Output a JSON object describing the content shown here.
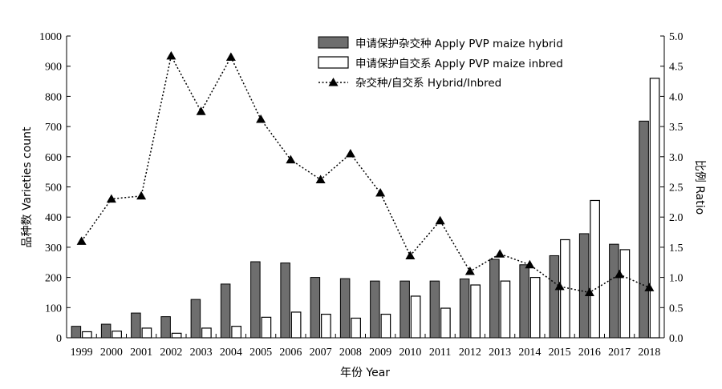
{
  "chart_data": {
    "type": "bar",
    "categories": [
      "1999",
      "2000",
      "2001",
      "2002",
      "2003",
      "2004",
      "2005",
      "2006",
      "2007",
      "2008",
      "2009",
      "2010",
      "2011",
      "2012",
      "2013",
      "2014",
      "2015",
      "2016",
      "2017",
      "2018"
    ],
    "series": [
      {
        "name": "申请保护杂交种 Apply PVP maize hybrid",
        "type": "bar",
        "axis": "left",
        "color": "#6e6e6e",
        "values": [
          38,
          45,
          82,
          70,
          127,
          178,
          252,
          248,
          200,
          196,
          188,
          188,
          188,
          195,
          260,
          242,
          272,
          345,
          310,
          718
        ]
      },
      {
        "name": "申请保护自交系 Apply PVP maize inbred",
        "type": "bar",
        "axis": "left",
        "color": "#ffffff",
        "values": [
          20,
          22,
          32,
          15,
          32,
          38,
          68,
          85,
          78,
          65,
          78,
          138,
          98,
          175,
          188,
          200,
          325,
          455,
          292,
          860
        ]
      },
      {
        "name": "杂交种/自交系 Hybrid/Inbred",
        "type": "line",
        "axis": "right",
        "color": "#000000",
        "values": [
          1.6,
          2.3,
          2.35,
          4.67,
          3.75,
          4.65,
          3.62,
          2.95,
          2.62,
          3.05,
          2.4,
          1.36,
          1.94,
          1.1,
          1.39,
          1.21,
          0.85,
          0.75,
          1.05,
          0.83
        ]
      }
    ],
    "xlabel": "年份 Year",
    "ylabel": "品种数 Varieties count",
    "y2label": "比例 Ratio",
    "ylim": [
      0,
      1000
    ],
    "y2lim": [
      0,
      5.0
    ],
    "yticks": [
      "0",
      "100",
      "200",
      "300",
      "400",
      "500",
      "600",
      "700",
      "800",
      "900",
      "1000"
    ],
    "y2ticks": [
      "0.0",
      "0.5",
      "1.0",
      "1.5",
      "2.0",
      "2.5",
      "3.0",
      "3.5",
      "4.0",
      "4.5",
      "5.0"
    ],
    "legend_position": "top-center",
    "grid": false
  }
}
